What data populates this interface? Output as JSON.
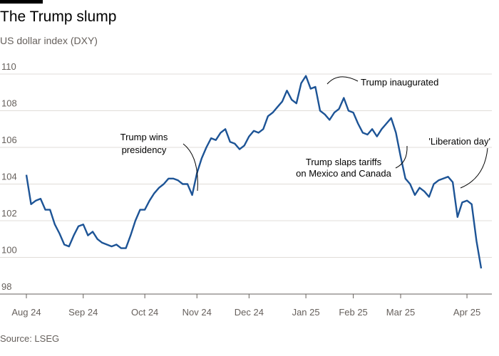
{
  "chart_data": {
    "type": "line",
    "title": "The Trump slump",
    "subtitle": "US dollar index (DXY)",
    "source": "Source: LSEG",
    "categories": [
      "Aug 24",
      null,
      null,
      null,
      null,
      null,
      null,
      null,
      null,
      null,
      null,
      null,
      "Sep 24",
      null,
      null,
      null,
      null,
      null,
      null,
      null,
      null,
      null,
      null,
      null,
      null,
      "Oct 24",
      null,
      null,
      null,
      null,
      null,
      null,
      null,
      null,
      null,
      null,
      "Nov 24",
      null,
      null,
      null,
      null,
      null,
      null,
      null,
      null,
      null,
      null,
      "Dec 24",
      null,
      null,
      null,
      null,
      null,
      null,
      null,
      null,
      null,
      null,
      null,
      "Jan 25",
      null,
      null,
      null,
      null,
      null,
      null,
      null,
      null,
      null,
      "Feb 25",
      null,
      null,
      null,
      null,
      null,
      null,
      null,
      null,
      null,
      "Mar 25",
      null,
      null,
      null,
      null,
      null,
      null,
      null,
      null,
      null,
      null,
      null,
      null,
      null,
      "Apr 25",
      null,
      null,
      null
    ],
    "series": [
      {
        "name": "US dollar index (DXY)",
        "color": "#1d5496",
        "values": [
          104.5,
          102.9,
          103.1,
          103.2,
          102.6,
          102.6,
          101.8,
          101.3,
          100.7,
          100.6,
          101.2,
          101.7,
          101.8,
          101.2,
          101.4,
          101.0,
          100.8,
          100.7,
          100.6,
          100.7,
          100.5,
          100.5,
          101.2,
          102.0,
          102.6,
          102.6,
          103.1,
          103.5,
          103.8,
          104.0,
          104.3,
          104.3,
          104.2,
          104.0,
          104.0,
          103.4,
          104.6,
          105.4,
          106.0,
          106.5,
          106.4,
          106.8,
          107.0,
          106.3,
          106.2,
          105.9,
          106.1,
          106.6,
          106.9,
          106.8,
          107.0,
          107.7,
          107.9,
          108.2,
          108.5,
          109.1,
          108.6,
          108.4,
          109.5,
          109.9,
          109.2,
          109.3,
          108.0,
          107.8,
          107.5,
          107.9,
          108.1,
          108.7,
          108.0,
          107.9,
          107.3,
          106.8,
          106.7,
          107.0,
          106.6,
          107.0,
          107.3,
          107.6,
          106.8,
          105.5,
          104.3,
          104.0,
          103.4,
          103.8,
          103.6,
          103.3,
          104.0,
          104.2,
          104.3,
          104.4,
          104.1,
          102.2,
          103.0,
          103.1,
          102.9,
          100.9,
          99.4
        ]
      }
    ],
    "ylim": [
      98,
      110
    ],
    "yticks": [
      98,
      100,
      102,
      104,
      106,
      108,
      110
    ],
    "grid": true,
    "annotations": [
      {
        "lines": [
          "Trump wins",
          "presidency"
        ]
      },
      {
        "lines": [
          "Trump inaugurated"
        ]
      },
      {
        "lines": [
          "Trump slaps tariffs",
          "on Mexico and Canada"
        ]
      },
      {
        "lines": [
          "'Liberation day'"
        ]
      }
    ]
  }
}
